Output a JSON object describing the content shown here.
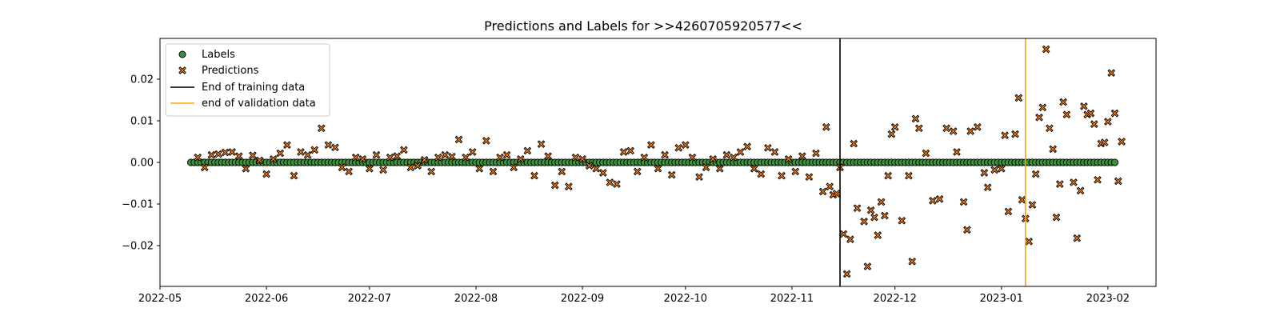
{
  "chart_data": {
    "type": "scatter",
    "title": "Predictions and Labels for >>4260705920577<<",
    "xlabel": "",
    "ylabel": "",
    "x_axis": {
      "type": "date",
      "range": [
        "2022-05-01",
        "2023-02-15"
      ],
      "tick_labels": [
        "2022-05",
        "2022-06",
        "2022-07",
        "2022-08",
        "2022-09",
        "2022-10",
        "2022-11",
        "2022-12",
        "2023-01",
        "2023-02"
      ]
    },
    "ylim": [
      -0.0298,
      0.0298
    ],
    "y_ticks": [
      {
        "value": 0.02,
        "label": "0.02"
      },
      {
        "value": 0.01,
        "label": "0.01"
      },
      {
        "value": 0.0,
        "label": "0.00"
      },
      {
        "value": -0.01,
        "label": "−0.01"
      },
      {
        "value": -0.02,
        "label": "−0.02"
      }
    ],
    "grid": false,
    "legend_position": "upper-left",
    "date_range": {
      "start": "2022-05-10",
      "end": "2023-02-03"
    },
    "vertical_lines": [
      {
        "name": "End of training data",
        "date": "2022-11-15",
        "color": "#000000"
      },
      {
        "name": "end of validation data",
        "date": "2023-01-08",
        "color": "#ffa500"
      }
    ],
    "series": [
      {
        "name": "Labels",
        "marker": "circle",
        "color": "#3a923a",
        "value": 0.0
      },
      {
        "name": "Predictions",
        "marker": "x",
        "color": "#ff7f0e",
        "points": [
          [
            "2022-05-12",
            0.0012
          ],
          [
            "2022-05-14",
            -0.0012
          ],
          [
            "2022-05-16",
            0.0018
          ],
          [
            "2022-05-18",
            0.002
          ],
          [
            "2022-05-20",
            0.0024
          ],
          [
            "2022-05-22",
            0.0025
          ],
          [
            "2022-05-24",
            0.0015
          ],
          [
            "2022-05-26",
            -0.0015
          ],
          [
            "2022-05-28",
            0.0017
          ],
          [
            "2022-05-30",
            0.0005
          ],
          [
            "2022-06-01",
            -0.0028
          ],
          [
            "2022-06-03",
            0.0008
          ],
          [
            "2022-06-05",
            0.0022
          ],
          [
            "2022-06-07",
            0.0042
          ],
          [
            "2022-06-09",
            -0.0032
          ],
          [
            "2022-06-11",
            0.0025
          ],
          [
            "2022-06-13",
            0.0018
          ],
          [
            "2022-06-15",
            0.003
          ],
          [
            "2022-06-17",
            0.0082
          ],
          [
            "2022-06-19",
            0.0042
          ],
          [
            "2022-06-21",
            0.0036
          ],
          [
            "2022-06-23",
            -0.0012
          ],
          [
            "2022-06-25",
            -0.0022
          ],
          [
            "2022-06-27",
            0.0012
          ],
          [
            "2022-06-29",
            0.0008
          ],
          [
            "2022-07-01",
            -0.0015
          ],
          [
            "2022-07-03",
            0.0018
          ],
          [
            "2022-07-05",
            -0.0018
          ],
          [
            "2022-07-07",
            0.0012
          ],
          [
            "2022-07-09",
            0.0015
          ],
          [
            "2022-07-11",
            0.003
          ],
          [
            "2022-07-13",
            -0.0012
          ],
          [
            "2022-07-15",
            -0.0008
          ],
          [
            "2022-07-17",
            0.0006
          ],
          [
            "2022-07-19",
            -0.0022
          ],
          [
            "2022-07-21",
            0.0012
          ],
          [
            "2022-07-23",
            0.0018
          ],
          [
            "2022-07-25",
            0.0014
          ],
          [
            "2022-07-27",
            0.0055
          ],
          [
            "2022-07-29",
            0.0012
          ],
          [
            "2022-07-31",
            0.0025
          ],
          [
            "2022-08-02",
            -0.0015
          ],
          [
            "2022-08-04",
            0.0052
          ],
          [
            "2022-08-06",
            -0.0022
          ],
          [
            "2022-08-08",
            0.0012
          ],
          [
            "2022-08-10",
            0.0018
          ],
          [
            "2022-08-12",
            -0.0012
          ],
          [
            "2022-08-14",
            0.0008
          ],
          [
            "2022-08-16",
            0.0028
          ],
          [
            "2022-08-18",
            -0.0032
          ],
          [
            "2022-08-20",
            0.0044
          ],
          [
            "2022-08-22",
            0.0015
          ],
          [
            "2022-08-24",
            -0.0055
          ],
          [
            "2022-08-26",
            -0.0022
          ],
          [
            "2022-08-28",
            -0.0058
          ],
          [
            "2022-08-30",
            0.0012
          ],
          [
            "2022-09-01",
            0.0008
          ],
          [
            "2022-09-03",
            -0.0008
          ],
          [
            "2022-09-05",
            -0.0015
          ],
          [
            "2022-09-07",
            -0.0025
          ],
          [
            "2022-09-09",
            -0.0048
          ],
          [
            "2022-09-11",
            -0.0052
          ],
          [
            "2022-09-13",
            0.0025
          ],
          [
            "2022-09-15",
            0.0028
          ],
          [
            "2022-09-17",
            -0.0022
          ],
          [
            "2022-09-19",
            0.0012
          ],
          [
            "2022-09-21",
            0.0042
          ],
          [
            "2022-09-23",
            -0.0015
          ],
          [
            "2022-09-25",
            0.0018
          ],
          [
            "2022-09-27",
            -0.003
          ],
          [
            "2022-09-29",
            0.0035
          ],
          [
            "2022-10-01",
            0.0042
          ],
          [
            "2022-10-03",
            0.0012
          ],
          [
            "2022-10-05",
            -0.0035
          ],
          [
            "2022-10-07",
            -0.0012
          ],
          [
            "2022-10-09",
            0.0008
          ],
          [
            "2022-10-11",
            -0.0015
          ],
          [
            "2022-10-13",
            0.0018
          ],
          [
            "2022-10-15",
            0.0012
          ],
          [
            "2022-10-17",
            0.0025
          ],
          [
            "2022-10-19",
            0.0038
          ],
          [
            "2022-10-21",
            -0.0015
          ],
          [
            "2022-10-23",
            -0.0028
          ],
          [
            "2022-10-25",
            0.0035
          ],
          [
            "2022-10-27",
            0.0025
          ],
          [
            "2022-10-29",
            -0.0032
          ],
          [
            "2022-10-31",
            0.0008
          ],
          [
            "2022-11-02",
            -0.0022
          ],
          [
            "2022-11-04",
            0.0015
          ],
          [
            "2022-11-06",
            -0.0035
          ],
          [
            "2022-11-08",
            0.0022
          ],
          [
            "2022-11-10",
            -0.007
          ],
          [
            "2022-11-11",
            0.0085
          ],
          [
            "2022-11-12",
            -0.0058
          ],
          [
            "2022-11-13",
            -0.0078
          ],
          [
            "2022-11-14",
            -0.0075
          ],
          [
            "2022-11-15",
            -0.0012
          ],
          [
            "2022-11-16",
            -0.0172
          ],
          [
            "2022-11-17",
            -0.0268
          ],
          [
            "2022-11-18",
            -0.0185
          ],
          [
            "2022-11-19",
            0.0045
          ],
          [
            "2022-11-20",
            -0.011
          ],
          [
            "2022-11-22",
            -0.0142
          ],
          [
            "2022-11-23",
            -0.025
          ],
          [
            "2022-11-24",
            -0.0115
          ],
          [
            "2022-11-25",
            -0.0132
          ],
          [
            "2022-11-26",
            -0.0175
          ],
          [
            "2022-11-27",
            -0.0095
          ],
          [
            "2022-11-28",
            -0.0128
          ],
          [
            "2022-11-29",
            -0.0032
          ],
          [
            "2022-11-30",
            0.0068
          ],
          [
            "2022-12-01",
            0.0085
          ],
          [
            "2022-12-03",
            -0.014
          ],
          [
            "2022-12-05",
            -0.0032
          ],
          [
            "2022-12-06",
            -0.0238
          ],
          [
            "2022-12-07",
            0.0105
          ],
          [
            "2022-12-08",
            0.0082
          ],
          [
            "2022-12-10",
            0.0022
          ],
          [
            "2022-12-12",
            -0.0092
          ],
          [
            "2022-12-14",
            -0.0088
          ],
          [
            "2022-12-16",
            0.0082
          ],
          [
            "2022-12-18",
            0.0075
          ],
          [
            "2022-12-19",
            0.0025
          ],
          [
            "2022-12-21",
            -0.0095
          ],
          [
            "2022-12-22",
            -0.0162
          ],
          [
            "2022-12-23",
            0.0075
          ],
          [
            "2022-12-25",
            0.0085
          ],
          [
            "2022-12-27",
            -0.0025
          ],
          [
            "2022-12-28",
            -0.006
          ],
          [
            "2022-12-30",
            -0.0018
          ],
          [
            "2023-01-01",
            -0.0015
          ],
          [
            "2023-01-02",
            0.0065
          ],
          [
            "2023-01-03",
            -0.0118
          ],
          [
            "2023-01-05",
            0.0068
          ],
          [
            "2023-01-06",
            0.0155
          ],
          [
            "2023-01-07",
            -0.009
          ],
          [
            "2023-01-08",
            -0.0135
          ],
          [
            "2023-01-09",
            -0.019
          ],
          [
            "2023-01-10",
            -0.0102
          ],
          [
            "2023-01-11",
            -0.0028
          ],
          [
            "2023-01-12",
            0.0108
          ],
          [
            "2023-01-13",
            0.0132
          ],
          [
            "2023-01-14",
            0.0272
          ],
          [
            "2023-01-15",
            0.0082
          ],
          [
            "2023-01-16",
            0.0032
          ],
          [
            "2023-01-17",
            -0.0132
          ],
          [
            "2023-01-18",
            -0.0052
          ],
          [
            "2023-01-19",
            0.0145
          ],
          [
            "2023-01-20",
            0.0115
          ],
          [
            "2023-01-22",
            -0.0048
          ],
          [
            "2023-01-23",
            -0.0182
          ],
          [
            "2023-01-24",
            -0.0068
          ],
          [
            "2023-01-25",
            0.0135
          ],
          [
            "2023-01-26",
            0.0115
          ],
          [
            "2023-01-27",
            0.0118
          ],
          [
            "2023-01-28",
            0.0092
          ],
          [
            "2023-01-29",
            -0.0042
          ],
          [
            "2023-01-30",
            0.0045
          ],
          [
            "2023-01-31",
            0.0048
          ],
          [
            "2023-02-01",
            0.0098
          ],
          [
            "2023-02-02",
            0.0215
          ],
          [
            "2023-02-03",
            0.0118
          ],
          [
            "2023-02-04",
            -0.0045
          ],
          [
            "2023-02-05",
            0.005
          ]
        ]
      }
    ]
  }
}
